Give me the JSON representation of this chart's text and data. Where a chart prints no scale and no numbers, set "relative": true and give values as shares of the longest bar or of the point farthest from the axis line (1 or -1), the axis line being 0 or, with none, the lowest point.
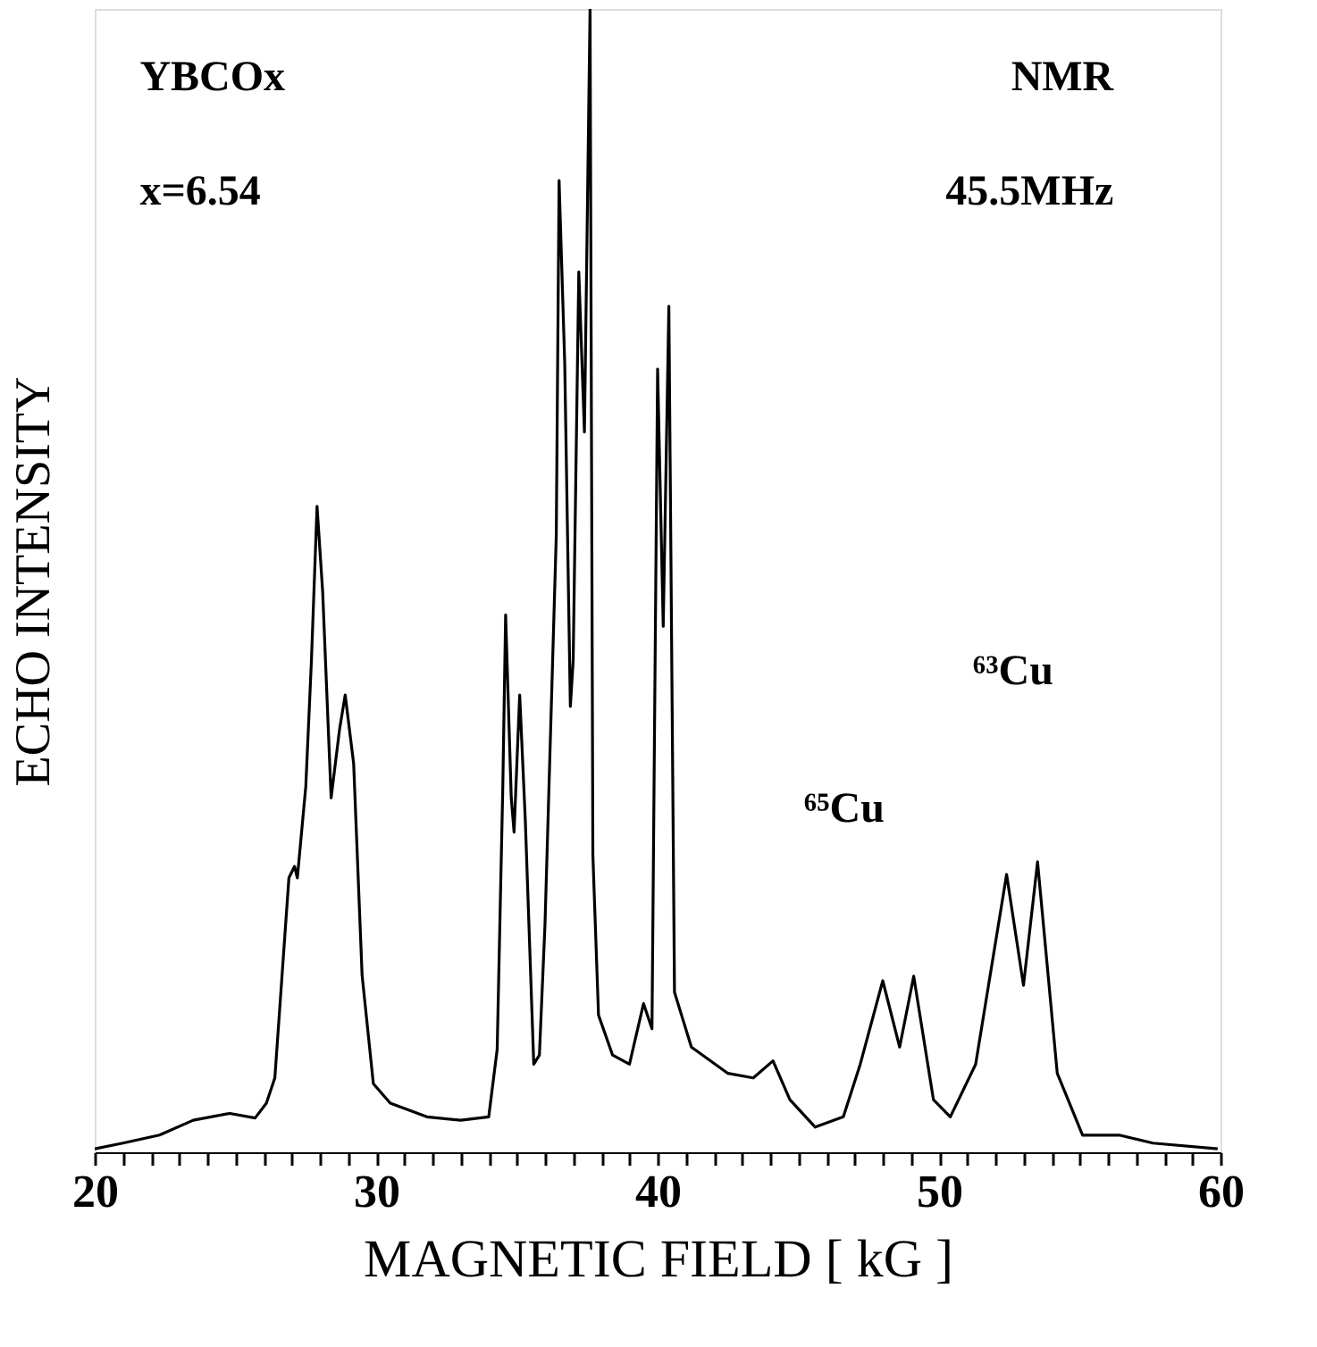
{
  "chart_data": {
    "type": "line",
    "relative": true,
    "xlabel": "MAGNETIC  FIELD  [  kG  ]",
    "ylabel": "ECHO INTENSITY",
    "xlim": [
      20,
      60
    ],
    "xticks": [
      20,
      {
        "value": 21,
        "label": null
      },
      {
        "value": 22,
        "label": null
      },
      {
        "value": 23,
        "label": null
      },
      {
        "value": 24,
        "label": null
      },
      {
        "value": 25,
        "label": null
      },
      {
        "value": 26,
        "label": null
      },
      {
        "value": 27,
        "label": null
      },
      {
        "value": 28,
        "label": null
      },
      {
        "value": 29,
        "label": null
      },
      30,
      {
        "value": 31,
        "label": null
      },
      {
        "value": 32,
        "label": null
      },
      {
        "value": 33,
        "label": null
      },
      {
        "value": 34,
        "label": null
      },
      {
        "value": 35,
        "label": null
      },
      {
        "value": 36,
        "label": null
      },
      {
        "value": 37,
        "label": null
      },
      {
        "value": 38,
        "label": null
      },
      {
        "value": 39,
        "label": null
      },
      40,
      {
        "value": 41,
        "label": null
      },
      {
        "value": 42,
        "label": null
      },
      {
        "value": 43,
        "label": null
      },
      {
        "value": 44,
        "label": null
      },
      {
        "value": 45,
        "label": null
      },
      {
        "value": 46,
        "label": null
      },
      {
        "value": 47,
        "label": null
      },
      {
        "value": 48,
        "label": null
      },
      {
        "value": 49,
        "label": null
      },
      50,
      {
        "value": 51,
        "label": null
      },
      {
        "value": 52,
        "label": null
      },
      {
        "value": 53,
        "label": null
      },
      {
        "value": 54,
        "label": null
      },
      {
        "value": 55,
        "label": null
      },
      {
        "value": 56,
        "label": null
      },
      {
        "value": 57,
        "label": null
      },
      {
        "value": 58,
        "label": null
      },
      {
        "value": 59,
        "label": null
      },
      60
    ],
    "tick_labels": "x",
    "grid": false,
    "marker": "none",
    "line_style": "solid",
    "annotations": [
      "YBCOx",
      "x=6.54",
      "NMR",
      "45.5MHz",
      "⁶⁵Cu",
      "⁶³Cu"
    ],
    "series": [
      {
        "color": "#000000",
        "x": [
          20.0,
          21.0,
          22.3,
          23.5,
          24.8,
          25.7,
          26.1,
          26.4,
          26.7,
          26.9,
          27.1,
          27.2,
          27.5,
          27.7,
          27.9,
          28.1,
          28.4,
          28.7,
          28.9,
          29.2,
          29.5,
          29.9,
          30.5,
          31.8,
          33.0,
          34.0,
          34.3,
          34.5,
          34.6,
          34.8,
          34.9,
          35.1,
          35.3,
          35.6,
          35.8,
          36.0,
          36.4,
          36.5,
          36.7,
          36.9,
          37.0,
          37.2,
          37.4,
          37.6,
          37.7,
          37.9,
          38.4,
          39.0,
          39.5,
          39.8,
          40.0,
          40.2,
          40.4,
          40.6,
          41.2,
          42.5,
          43.4,
          44.1,
          44.7,
          45.6,
          46.6,
          47.2,
          48.0,
          48.6,
          49.1,
          49.8,
          50.4,
          51.3,
          52.4,
          53.0,
          53.5,
          54.2,
          55.1,
          56.4,
          57.6,
          59.9
        ],
        "values": [
          0.003,
          0.008,
          0.015,
          0.028,
          0.034,
          0.03,
          0.043,
          0.065,
          0.17,
          0.24,
          0.25,
          0.24,
          0.32,
          0.43,
          0.565,
          0.49,
          0.31,
          0.37,
          0.4,
          0.34,
          0.155,
          0.06,
          0.043,
          0.031,
          0.028,
          0.031,
          0.09,
          0.32,
          0.47,
          0.31,
          0.28,
          0.4,
          0.29,
          0.077,
          0.085,
          0.2,
          0.54,
          0.85,
          0.69,
          0.39,
          0.43,
          0.77,
          0.63,
          1.0,
          0.26,
          0.12,
          0.085,
          0.077,
          0.13,
          0.108,
          0.685,
          0.46,
          0.74,
          0.14,
          0.092,
          0.069,
          0.065,
          0.08,
          0.046,
          0.022,
          0.031,
          0.077,
          0.15,
          0.092,
          0.154,
          0.046,
          0.031,
          0.077,
          0.243,
          0.146,
          0.254,
          0.069,
          0.015,
          0.015,
          0.008,
          0.003
        ]
      }
    ]
  }
}
